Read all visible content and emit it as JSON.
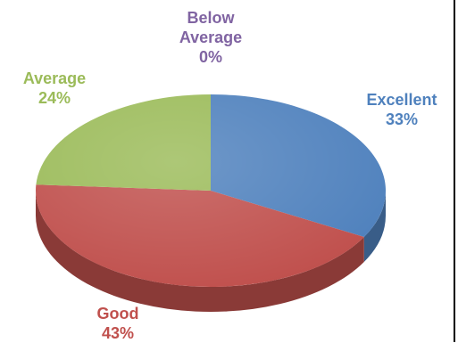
{
  "chart_data": {
    "type": "pie",
    "title": "",
    "style": "3d",
    "slices": [
      {
        "label_lines": [
          "Excellent",
          "33%"
        ],
        "value": 33,
        "color": "#4f81bd"
      },
      {
        "label_lines": [
          "Good",
          "43%"
        ],
        "value": 43,
        "color": "#c0504d"
      },
      {
        "label_lines": [
          "Average",
          "24%"
        ],
        "value": 24,
        "color": "#9bbb59"
      },
      {
        "label_lines": [
          "Below",
          "Average",
          "0%"
        ],
        "value": 0,
        "color": "#8064a2"
      }
    ],
    "legend": "none"
  }
}
